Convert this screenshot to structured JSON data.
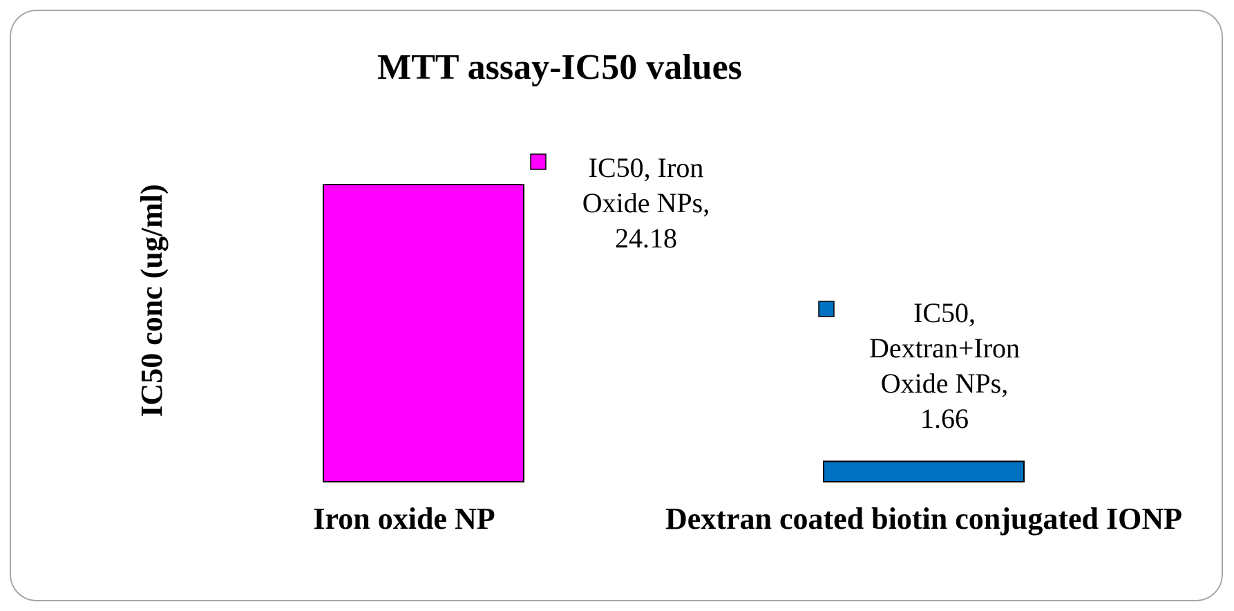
{
  "chart_data": {
    "type": "bar",
    "title": "MTT assay-IC50 values",
    "ylabel": "IC50 conc (ug/ml)",
    "xlabel": "",
    "categories": [
      "Iron oxide NP",
      "Dextran coated biotin conjugated IONP"
    ],
    "series": [
      {
        "values": [
          24.18,
          1.66
        ],
        "colors": [
          "#ff00ff",
          "#0070c0"
        ],
        "data_labels": [
          [
            "IC50, Iron",
            "Oxide NPs,",
            "24.18"
          ],
          [
            "IC50,",
            "Dextran+Iron",
            "Oxide NPs,",
            "1.66"
          ]
        ]
      }
    ],
    "ylim": [
      0,
      25
    ],
    "grid": false,
    "legend": "none"
  }
}
